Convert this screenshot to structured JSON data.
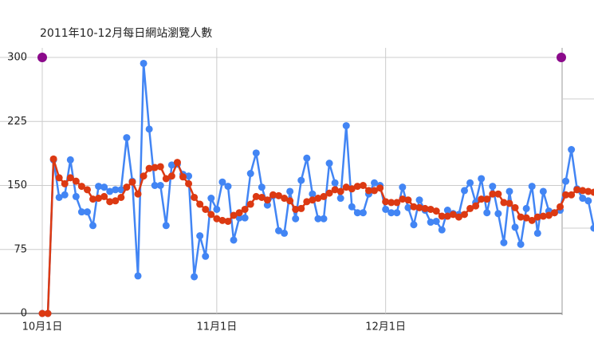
{
  "chart_data": {
    "type": "line",
    "title": "2011年10-12月每日網站瀏覽人數",
    "categories": [
      "10月1日",
      null,
      null,
      null,
      null,
      null,
      null,
      null,
      null,
      null,
      null,
      null,
      null,
      null,
      null,
      null,
      null,
      null,
      null,
      null,
      null,
      null,
      null,
      null,
      null,
      null,
      null,
      null,
      null,
      null,
      null,
      "11月1日",
      null,
      null,
      null,
      null,
      null,
      null,
      null,
      null,
      null,
      null,
      null,
      null,
      null,
      null,
      null,
      null,
      null,
      null,
      null,
      null,
      null,
      null,
      null,
      null,
      null,
      null,
      null,
      null,
      null,
      "12月1日",
      null,
      null,
      null,
      null,
      null,
      null,
      null,
      null,
      null,
      null,
      null,
      null,
      null,
      null,
      null,
      null,
      null,
      null,
      null,
      null,
      null,
      null,
      null,
      null,
      null,
      null,
      null,
      null,
      null,
      null,
      null,
      null,
      null,
      null,
      null,
      null,
      null
    ],
    "series": [
      {
        "color": "#4285f4",
        "values": [
          0,
          0,
          180,
          136,
          139,
          180,
          137,
          119,
          119,
          103,
          149,
          148,
          143,
          145,
          145,
          206,
          155,
          44,
          293,
          216,
          150,
          150,
          103,
          174,
          175,
          163,
          161,
          43,
          91,
          67,
          135,
          122,
          154,
          149,
          86,
          112,
          112,
          164,
          188,
          148,
          127,
          138,
          97,
          94,
          143,
          111,
          156,
          182,
          140,
          111,
          111,
          176,
          153,
          135,
          220,
          125,
          118,
          118,
          140,
          153,
          150,
          122,
          118,
          118,
          148,
          124,
          104,
          133,
          121,
          107,
          108,
          98,
          121,
          117,
          116,
          144,
          153,
          130,
          158,
          118,
          149,
          117,
          83,
          143,
          101,
          81,
          123,
          149,
          94,
          143,
          120,
          118,
          121,
          155,
          192,
          146,
          135,
          132,
          100
        ]
      },
      {
        "color": "#dc3912",
        "values": [
          0,
          0,
          181,
          159,
          152,
          159,
          155,
          149,
          145,
          134,
          135,
          137,
          131,
          132,
          136,
          148,
          154,
          140,
          161,
          170,
          171,
          172,
          158,
          161,
          177,
          160,
          152,
          136,
          128,
          122,
          116,
          111,
          109,
          108,
          115,
          118,
          122,
          128,
          137,
          136,
          133,
          139,
          138,
          135,
          132,
          122,
          123,
          131,
          133,
          135,
          137,
          141,
          145,
          143,
          148,
          146,
          149,
          150,
          144,
          144,
          147,
          131,
          130,
          130,
          134,
          133,
          125,
          124,
          123,
          122,
          120,
          114,
          114,
          116,
          113,
          116,
          123,
          126,
          134,
          134,
          140,
          140,
          130,
          129,
          124,
          113,
          112,
          109,
          113,
          114,
          115,
          118,
          125,
          139,
          139,
          145,
          144,
          143,
          142
        ]
      }
    ],
    "ylim": [
      0,
      300
    ],
    "yticks": [
      0,
      75,
      150,
      225,
      300
    ],
    "grid": true
  }
}
